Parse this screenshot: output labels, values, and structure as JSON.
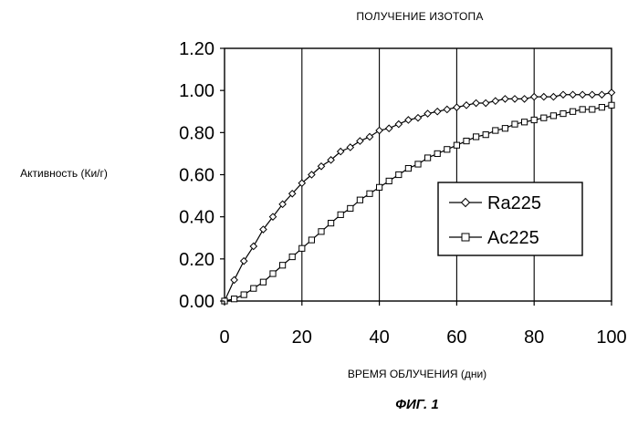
{
  "figure": {
    "caption": "ФИГ. 1"
  },
  "chart_data": {
    "type": "line",
    "title": "ПОЛУЧЕНИЕ ИЗОТОПА",
    "xlabel": "ВРЕМЯ  ОБЛУЧЕНИЯ (дни)",
    "ylabel": "Активность (Ки/г)",
    "xlim": [
      0,
      100
    ],
    "ylim": [
      0,
      1.2
    ],
    "x_ticks": [
      "0",
      "20",
      "40",
      "60",
      "80",
      "100"
    ],
    "y_ticks": [
      "0.00",
      "0.20",
      "0.40",
      "0.60",
      "0.80",
      "1.00",
      "1.20"
    ],
    "grid": "vertical",
    "legend_position": "right-center",
    "colors": {
      "line": "#000000",
      "marker_fill": "#ffffff"
    },
    "series": [
      {
        "name": "Ra225",
        "marker": "diamond",
        "x": [
          0,
          2.5,
          5,
          7.5,
          10,
          12.5,
          15,
          17.5,
          20,
          22.5,
          25,
          27.5,
          30,
          32.5,
          35,
          37.5,
          40,
          42.5,
          45,
          47.5,
          50,
          52.5,
          55,
          57.5,
          60,
          62.5,
          65,
          67.5,
          70,
          72.5,
          75,
          77.5,
          80,
          82.5,
          85,
          87.5,
          90,
          92.5,
          95,
          97.5,
          100
        ],
        "values": [
          0.0,
          0.1,
          0.19,
          0.26,
          0.34,
          0.4,
          0.46,
          0.51,
          0.56,
          0.6,
          0.64,
          0.67,
          0.71,
          0.73,
          0.76,
          0.78,
          0.81,
          0.82,
          0.84,
          0.86,
          0.87,
          0.89,
          0.9,
          0.91,
          0.92,
          0.93,
          0.94,
          0.94,
          0.95,
          0.96,
          0.96,
          0.96,
          0.97,
          0.97,
          0.97,
          0.98,
          0.98,
          0.98,
          0.98,
          0.98,
          0.99
        ]
      },
      {
        "name": "Ac225",
        "marker": "square",
        "x": [
          0,
          2.5,
          5,
          7.5,
          10,
          12.5,
          15,
          17.5,
          20,
          22.5,
          25,
          27.5,
          30,
          32.5,
          35,
          37.5,
          40,
          42.5,
          45,
          47.5,
          50,
          52.5,
          55,
          57.5,
          60,
          62.5,
          65,
          67.5,
          70,
          72.5,
          75,
          77.5,
          80,
          82.5,
          85,
          87.5,
          90,
          92.5,
          95,
          97.5,
          100
        ],
        "values": [
          0.0,
          0.01,
          0.03,
          0.06,
          0.09,
          0.13,
          0.17,
          0.21,
          0.25,
          0.29,
          0.33,
          0.37,
          0.41,
          0.44,
          0.48,
          0.51,
          0.54,
          0.57,
          0.6,
          0.63,
          0.65,
          0.68,
          0.7,
          0.72,
          0.74,
          0.76,
          0.78,
          0.79,
          0.81,
          0.82,
          0.84,
          0.85,
          0.86,
          0.87,
          0.88,
          0.89,
          0.9,
          0.91,
          0.91,
          0.92,
          0.93
        ]
      }
    ]
  }
}
